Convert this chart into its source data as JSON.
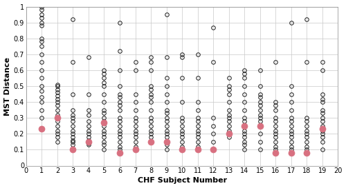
{
  "title": "",
  "xlabel": "CHF Subject Number",
  "ylabel": "MST Distance",
  "xlim": [
    0,
    20
  ],
  "ylim": [
    0,
    1.0
  ],
  "xticks": [
    0,
    1,
    2,
    3,
    4,
    5,
    6,
    7,
    8,
    9,
    10,
    11,
    12,
    13,
    14,
    15,
    16,
    17,
    18,
    19,
    20
  ],
  "yticks": [
    0,
    0.1,
    0.2,
    0.3,
    0.4,
    0.5,
    0.6,
    0.7,
    0.8,
    0.9,
    1
  ],
  "ytick_labels": [
    "0",
    "0.1",
    "0.2",
    "0.3",
    "0.4",
    "0.5",
    "0.6",
    "0.7",
    "0.8",
    "0.9",
    "1"
  ],
  "black_data": {
    "1": [
      0.3,
      0.35,
      0.4,
      0.43,
      0.47,
      0.5,
      0.55,
      0.6,
      0.65,
      0.7,
      0.75,
      0.78,
      0.8,
      0.88,
      0.9,
      0.93,
      0.95,
      0.98,
      1.0
    ],
    "2": [
      0.15,
      0.18,
      0.2,
      0.22,
      0.25,
      0.28,
      0.32,
      0.35,
      0.38,
      0.4,
      0.42,
      0.44,
      0.46,
      0.48,
      0.5,
      0.51
    ],
    "3": [
      0.1,
      0.13,
      0.15,
      0.16,
      0.18,
      0.2,
      0.22,
      0.25,
      0.28,
      0.3,
      0.32,
      0.35,
      0.45,
      0.65,
      0.92
    ],
    "4": [
      0.13,
      0.14,
      0.15,
      0.16,
      0.18,
      0.2,
      0.22,
      0.25,
      0.28,
      0.32,
      0.35,
      0.45,
      0.68
    ],
    "5": [
      0.1,
      0.13,
      0.15,
      0.18,
      0.2,
      0.22,
      0.25,
      0.28,
      0.3,
      0.33,
      0.35,
      0.4,
      0.45,
      0.5,
      0.52,
      0.55,
      0.58,
      0.6
    ],
    "6": [
      0.1,
      0.12,
      0.15,
      0.18,
      0.2,
      0.22,
      0.25,
      0.28,
      0.3,
      0.35,
      0.38,
      0.4,
      0.43,
      0.45,
      0.5,
      0.6,
      0.72,
      0.9
    ],
    "7": [
      0.1,
      0.12,
      0.15,
      0.18,
      0.2,
      0.22,
      0.25,
      0.28,
      0.3,
      0.35,
      0.4,
      0.45,
      0.6,
      0.65
    ],
    "8": [
      0.15,
      0.18,
      0.2,
      0.22,
      0.25,
      0.28,
      0.3,
      0.35,
      0.4,
      0.43,
      0.45,
      0.48,
      0.5,
      0.6,
      0.65,
      0.68
    ],
    "9": [
      0.1,
      0.13,
      0.15,
      0.18,
      0.2,
      0.22,
      0.25,
      0.28,
      0.3,
      0.33,
      0.35,
      0.4,
      0.45,
      0.5,
      0.55,
      0.68,
      0.95
    ],
    "10": [
      0.1,
      0.12,
      0.15,
      0.18,
      0.2,
      0.22,
      0.25,
      0.28,
      0.3,
      0.4,
      0.55,
      0.68,
      0.7
    ],
    "11": [
      0.1,
      0.12,
      0.15,
      0.18,
      0.2,
      0.22,
      0.25,
      0.28,
      0.3,
      0.35,
      0.4,
      0.55,
      0.7
    ],
    "12": [
      0.1,
      0.15,
      0.2,
      0.25,
      0.3,
      0.65,
      0.87
    ],
    "13": [
      0.18,
      0.2,
      0.22,
      0.25,
      0.28,
      0.3,
      0.32,
      0.35,
      0.4,
      0.45,
      0.48,
      0.5,
      0.55
    ],
    "14": [
      0.1,
      0.13,
      0.15,
      0.18,
      0.2,
      0.22,
      0.25,
      0.28,
      0.3,
      0.35,
      0.4,
      0.45,
      0.5,
      0.55,
      0.58,
      0.6
    ],
    "15": [
      0.1,
      0.15,
      0.2,
      0.25,
      0.28,
      0.3,
      0.32,
      0.35,
      0.38,
      0.4,
      0.43,
      0.45,
      0.5,
      0.6
    ],
    "16": [
      0.1,
      0.12,
      0.15,
      0.18,
      0.2,
      0.22,
      0.25,
      0.28,
      0.3,
      0.35,
      0.38,
      0.4,
      0.65
    ],
    "17": [
      0.1,
      0.12,
      0.15,
      0.18,
      0.2,
      0.22,
      0.25,
      0.28,
      0.3,
      0.35,
      0.4,
      0.45,
      0.5,
      0.9
    ],
    "18": [
      0.1,
      0.12,
      0.15,
      0.18,
      0.2,
      0.22,
      0.25,
      0.28,
      0.3,
      0.65,
      0.92
    ],
    "19": [
      0.1,
      0.15,
      0.18,
      0.2,
      0.22,
      0.25,
      0.28,
      0.3,
      0.33,
      0.35,
      0.4,
      0.42,
      0.45,
      0.6,
      0.65
    ]
  },
  "red_data": {
    "1": [
      0.23
    ],
    "2": [
      0.3
    ],
    "3": [
      0.1
    ],
    "4": [
      0.15
    ],
    "5": [
      0.27
    ],
    "6": [
      0.08
    ],
    "7": [
      0.1
    ],
    "8": [
      0.15
    ],
    "9": [
      0.15
    ],
    "10": [
      0.1
    ],
    "11": [
      0.1
    ],
    "12": [
      0.1
    ],
    "13": [
      0.2
    ],
    "14": [
      0.25
    ],
    "15": [
      0.25
    ],
    "16": [
      0.08
    ],
    "17": [
      0.08
    ],
    "18": [
      0.08
    ],
    "19": [
      0.23
    ]
  },
  "black_color": "#1a1a1a",
  "red_color": "#d87080",
  "marker_size": 4.0,
  "red_marker_size": 6.5,
  "background_color": "#ffffff",
  "grid_color": "#c8c8c8"
}
